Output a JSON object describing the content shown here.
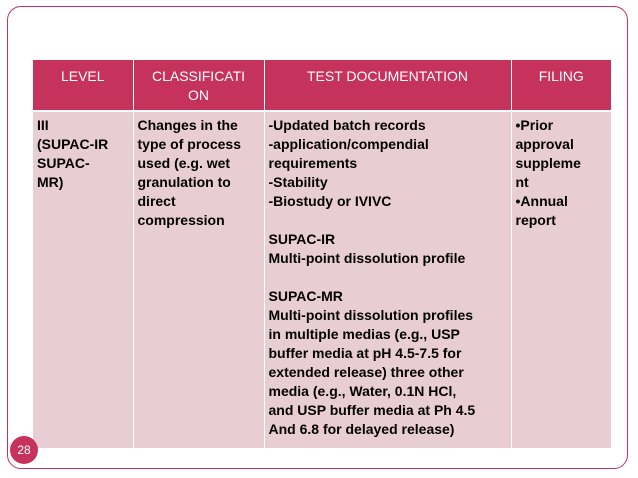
{
  "table": {
    "headers": [
      "LEVEL",
      "CLASSIFICATI\nON",
      "TEST DOCUMENTATION",
      "FILING"
    ],
    "header_lines": [
      [
        "LEVEL"
      ],
      [
        "CLASSIFICATI",
        "ON"
      ],
      [
        "TEST DOCUMENTATION"
      ],
      [
        "FILING"
      ]
    ],
    "row": {
      "level": [
        "III",
        "(SUPAC-IR",
        "SUPAC-",
        "MR)"
      ],
      "classification": [
        "Changes in the",
        "type of process",
        "used (e.g. wet",
        "granulation to",
        "direct",
        "compression"
      ],
      "test_documentation": [
        "-Updated batch records",
        "-application/compendial",
        "requirements",
        "-Stability",
        "-Biostudy or IVIVC",
        "",
        "SUPAC-IR",
        "Multi-point dissolution profile",
        "",
        "SUPAC-MR",
        "Multi-point dissolution profiles",
        "in multiple medias (e.g., USP",
        "buffer media at pH 4.5-7.5 for",
        "extended release) three other",
        "media (e.g., Water, 0.1N HCl,",
        "and USP buffer media at Ph 4.5",
        "And 6.8 for delayed release)"
      ],
      "filing": [
        "•Prior",
        "approval",
        "suppleme",
        "nt",
        "•Annual",
        "report"
      ]
    }
  },
  "page_number": "28",
  "colors": {
    "accent": "#c5325c",
    "cell_background": "#e8cdd4"
  }
}
